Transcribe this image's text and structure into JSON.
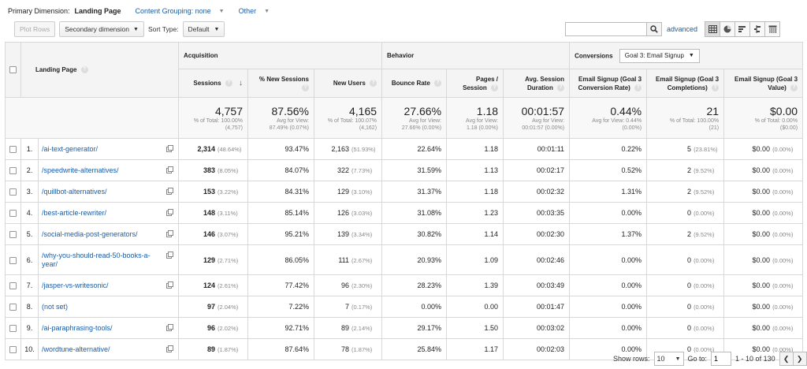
{
  "dimensions": {
    "label": "Primary Dimension:",
    "active": "Landing Page",
    "content_grouping": "Content Grouping: none",
    "other": "Other"
  },
  "toolbar": {
    "plot_rows": "Plot Rows",
    "secondary_dimension": "Secondary dimension",
    "sort_type_label": "Sort Type:",
    "sort_type_value": "Default",
    "search_value": "",
    "advanced": "advanced"
  },
  "table": {
    "group_headers": {
      "landing_page": "Landing Page",
      "acquisition": "Acquisition",
      "behavior": "Behavior",
      "conversions": "Conversions",
      "goal_select": "Goal 3: Email Signup"
    },
    "columns": [
      "Sessions",
      "% New Sessions",
      "New Users",
      "Bounce Rate",
      "Pages / Session",
      "Avg. Session Duration",
      "Email Signup (Goal 3 Conversion Rate)",
      "Email Signup (Goal 3 Completions)",
      "Email Signup (Goal 3 Value)"
    ],
    "totals": [
      {
        "big": "4,757",
        "small1": "% of Total: 100.00%",
        "small2": "(4,757)"
      },
      {
        "big": "87.56%",
        "small1": "Avg for View:",
        "small2": "87.49% (0.07%)"
      },
      {
        "big": "4,165",
        "small1": "% of Total: 100.07%",
        "small2": "(4,162)"
      },
      {
        "big": "27.66%",
        "small1": "Avg for View:",
        "small2": "27.66% (0.00%)"
      },
      {
        "big": "1.18",
        "small1": "Avg for View:",
        "small2": "1.18 (0.00%)"
      },
      {
        "big": "00:01:57",
        "small1": "Avg for View:",
        "small2": "00:01:57 (0.00%)"
      },
      {
        "big": "0.44%",
        "small1": "Avg for View: 0.44%",
        "small2": "(0.00%)"
      },
      {
        "big": "21",
        "small1": "% of Total: 100.00%",
        "small2": "(21)"
      },
      {
        "big": "$0.00",
        "small1": "% of Total: 0.00%",
        "small2": "($0.00)"
      }
    ],
    "rows": [
      {
        "idx": "1.",
        "page": "/ai-text-generator/",
        "sessions": "2,314",
        "sessions_pct": "(48.64%)",
        "new_sessions": "93.47%",
        "new_users": "2,163",
        "new_users_pct": "(51.93%)",
        "bounce": "22.64%",
        "pages": "1.18",
        "duration": "00:01:11",
        "conv_rate": "0.22%",
        "completions": "5",
        "completions_pct": "(23.81%)",
        "value": "$0.00",
        "value_pct": "(0.00%)"
      },
      {
        "idx": "2.",
        "page": "/speedwrite-alternatives/",
        "sessions": "383",
        "sessions_pct": "(8.05%)",
        "new_sessions": "84.07%",
        "new_users": "322",
        "new_users_pct": "(7.73%)",
        "bounce": "31.59%",
        "pages": "1.13",
        "duration": "00:02:17",
        "conv_rate": "0.52%",
        "completions": "2",
        "completions_pct": "(9.52%)",
        "value": "$0.00",
        "value_pct": "(0.00%)"
      },
      {
        "idx": "3.",
        "page": "/quillbot-alternatives/",
        "sessions": "153",
        "sessions_pct": "(3.22%)",
        "new_sessions": "84.31%",
        "new_users": "129",
        "new_users_pct": "(3.10%)",
        "bounce": "31.37%",
        "pages": "1.18",
        "duration": "00:02:32",
        "conv_rate": "1.31%",
        "completions": "2",
        "completions_pct": "(9.52%)",
        "value": "$0.00",
        "value_pct": "(0.00%)"
      },
      {
        "idx": "4.",
        "page": "/best-article-rewriter/",
        "sessions": "148",
        "sessions_pct": "(3.11%)",
        "new_sessions": "85.14%",
        "new_users": "126",
        "new_users_pct": "(3.03%)",
        "bounce": "31.08%",
        "pages": "1.23",
        "duration": "00:03:35",
        "conv_rate": "0.00%",
        "completions": "0",
        "completions_pct": "(0.00%)",
        "value": "$0.00",
        "value_pct": "(0.00%)"
      },
      {
        "idx": "5.",
        "page": "/social-media-post-generators/",
        "sessions": "146",
        "sessions_pct": "(3.07%)",
        "new_sessions": "95.21%",
        "new_users": "139",
        "new_users_pct": "(3.34%)",
        "bounce": "30.82%",
        "pages": "1.14",
        "duration": "00:02:30",
        "conv_rate": "1.37%",
        "completions": "2",
        "completions_pct": "(9.52%)",
        "value": "$0.00",
        "value_pct": "(0.00%)"
      },
      {
        "idx": "6.",
        "page": "/why-you-should-read-50-books-a-year/",
        "sessions": "129",
        "sessions_pct": "(2.71%)",
        "new_sessions": "86.05%",
        "new_users": "111",
        "new_users_pct": "(2.67%)",
        "bounce": "20.93%",
        "pages": "1.09",
        "duration": "00:02:46",
        "conv_rate": "0.00%",
        "completions": "0",
        "completions_pct": "(0.00%)",
        "value": "$0.00",
        "value_pct": "(0.00%)"
      },
      {
        "idx": "7.",
        "page": "/jasper-vs-writesonic/",
        "sessions": "124",
        "sessions_pct": "(2.61%)",
        "new_sessions": "77.42%",
        "new_users": "96",
        "new_users_pct": "(2.30%)",
        "bounce": "28.23%",
        "pages": "1.39",
        "duration": "00:03:49",
        "conv_rate": "0.00%",
        "completions": "0",
        "completions_pct": "(0.00%)",
        "value": "$0.00",
        "value_pct": "(0.00%)"
      },
      {
        "idx": "8.",
        "page": "(not set)",
        "sessions": "97",
        "sessions_pct": "(2.04%)",
        "new_sessions": "7.22%",
        "new_users": "7",
        "new_users_pct": "(0.17%)",
        "bounce": "0.00%",
        "pages": "0.00",
        "duration": "00:01:47",
        "conv_rate": "0.00%",
        "completions": "0",
        "completions_pct": "(0.00%)",
        "value": "$0.00",
        "value_pct": "(0.00%)"
      },
      {
        "idx": "9.",
        "page": "/ai-paraphrasing-tools/",
        "sessions": "96",
        "sessions_pct": "(2.02%)",
        "new_sessions": "92.71%",
        "new_users": "89",
        "new_users_pct": "(2.14%)",
        "bounce": "29.17%",
        "pages": "1.50",
        "duration": "00:03:02",
        "conv_rate": "0.00%",
        "completions": "0",
        "completions_pct": "(0.00%)",
        "value": "$0.00",
        "value_pct": "(0.00%)"
      },
      {
        "idx": "10.",
        "page": "/wordtune-alternative/",
        "sessions": "89",
        "sessions_pct": "(1.87%)",
        "new_sessions": "87.64%",
        "new_users": "78",
        "new_users_pct": "(1.87%)",
        "bounce": "25.84%",
        "pages": "1.17",
        "duration": "00:02:03",
        "conv_rate": "0.00%",
        "completions": "0",
        "completions_pct": "(0.00%)",
        "value": "$0.00",
        "value_pct": "(0.00%)"
      }
    ]
  },
  "footer": {
    "show_rows_label": "Show rows:",
    "show_rows_value": "10",
    "goto_label": "Go to:",
    "goto_value": "1",
    "range": "1 - 10 of 130"
  },
  "icons": {
    "search": "magnifier-icon",
    "views": [
      "table-view-icon",
      "pie-view-icon",
      "performance-view-icon",
      "comparison-view-icon",
      "pivot-view-icon"
    ]
  },
  "colors": {
    "link": "#1a5ca8",
    "header_bg": "#f4f4f4"
  }
}
